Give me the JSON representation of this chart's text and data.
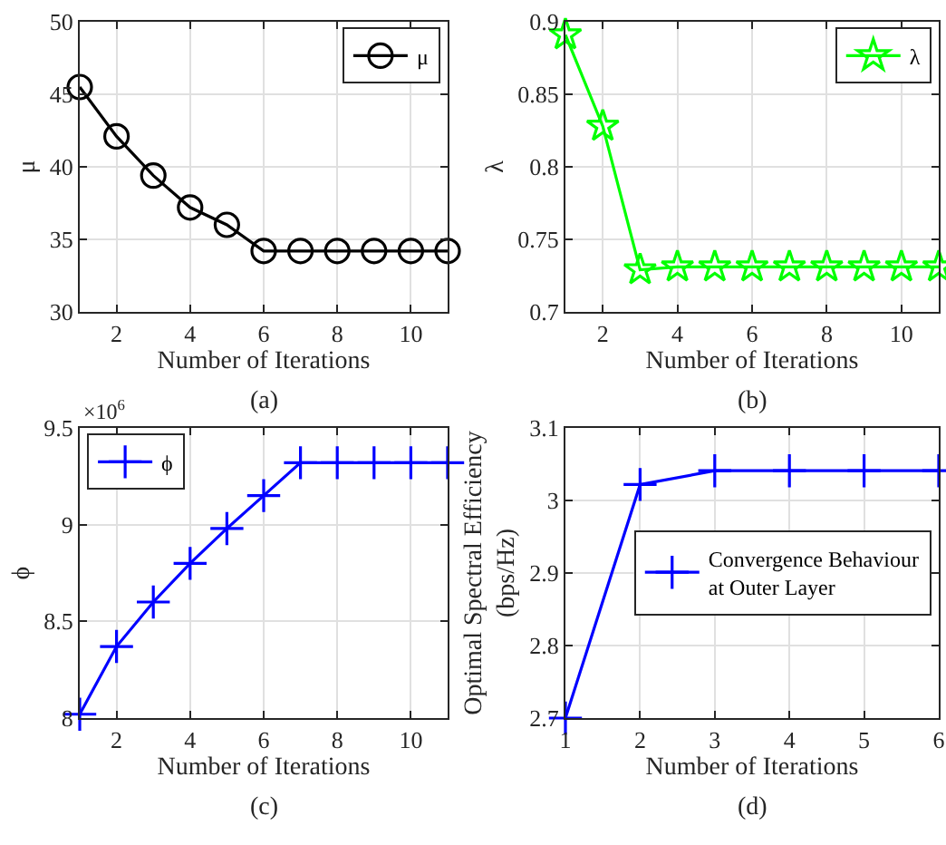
{
  "chart_data": [
    {
      "type": "line",
      "xlabel": "Number of Iterations",
      "ylabel": "μ",
      "annotations": [
        "(a)"
      ],
      "x": [
        1,
        2,
        3,
        4,
        5,
        6,
        7,
        8,
        9,
        10,
        11
      ],
      "series": [
        {
          "name": "μ",
          "color": "#000000",
          "values": [
            45.5,
            42.1,
            39.4,
            37.2,
            36.0,
            34.2,
            34.2,
            34.2,
            34.2,
            34.2,
            34.2
          ]
        }
      ],
      "xlim": [
        1,
        11
      ],
      "xticks": [
        2,
        4,
        6,
        8,
        10
      ],
      "ylim": [
        30,
        50
      ],
      "yticks": [
        30,
        35,
        40,
        45,
        50
      ],
      "grid": true,
      "legend": "top right",
      "marker": "circle",
      "line_style": "solid"
    },
    {
      "type": "line",
      "xlabel": "Number of Iterations",
      "ylabel": "λ",
      "annotations": [
        "(b)"
      ],
      "x": [
        1,
        2,
        3,
        4,
        5,
        6,
        7,
        8,
        9,
        10,
        11
      ],
      "series": [
        {
          "name": "λ",
          "color": "#00ff00",
          "values": [
            0.891,
            0.828,
            0.729,
            0.731,
            0.731,
            0.731,
            0.731,
            0.731,
            0.731,
            0.731,
            0.731
          ]
        }
      ],
      "xlim": [
        1,
        11
      ],
      "xticks": [
        2,
        4,
        6,
        8,
        10
      ],
      "ylim": [
        0.7,
        0.9
      ],
      "yticks": [
        0.7,
        0.75,
        0.8,
        0.85,
        0.9
      ],
      "grid": true,
      "legend": "top right",
      "marker": "star",
      "line_style": "solid"
    },
    {
      "type": "line",
      "xlabel": "Number of Iterations",
      "ylabel": "ϕ",
      "annotations": [
        "(c)",
        "×10$^{6}$"
      ],
      "x": [
        1,
        2,
        3,
        4,
        5,
        6,
        7,
        8,
        9,
        10,
        11
      ],
      "series": [
        {
          "name": "ϕ",
          "color": "#0000ff",
          "values": [
            8.02,
            8.37,
            8.6,
            8.8,
            8.98,
            9.15,
            9.32,
            9.32,
            9.32,
            9.32,
            9.32
          ]
        }
      ],
      "xlim": [
        1,
        11
      ],
      "xticks": [
        2,
        4,
        6,
        8,
        10
      ],
      "ylim": [
        8,
        9.5
      ],
      "yticks": [
        8,
        8.5,
        9,
        9.5
      ],
      "grid": true,
      "legend": "top left",
      "marker": "cross",
      "line_style": "solid"
    },
    {
      "type": "line",
      "xlabel": "Number of Iterations",
      "ylabel": "Optimal Spectral Efficiency\n(bps/Hz)",
      "annotations": [
        "(d)"
      ],
      "x": [
        1,
        2,
        3,
        4,
        5,
        6
      ],
      "series": [
        {
          "name": "Convergence Behaviour\nat Outer Layer",
          "color": "#0000ff",
          "values": [
            2.7,
            3.022,
            3.041,
            3.041,
            3.041,
            3.041
          ]
        }
      ],
      "xlim": [
        1,
        6
      ],
      "xticks": [
        1,
        2,
        3,
        4,
        5,
        6
      ],
      "ylim": [
        2.7,
        3.1
      ],
      "yticks": [
        2.7,
        2.8,
        2.9,
        3.0,
        3.1
      ],
      "grid": true,
      "legend": "right",
      "marker": "cross",
      "line_style": "solid"
    }
  ]
}
